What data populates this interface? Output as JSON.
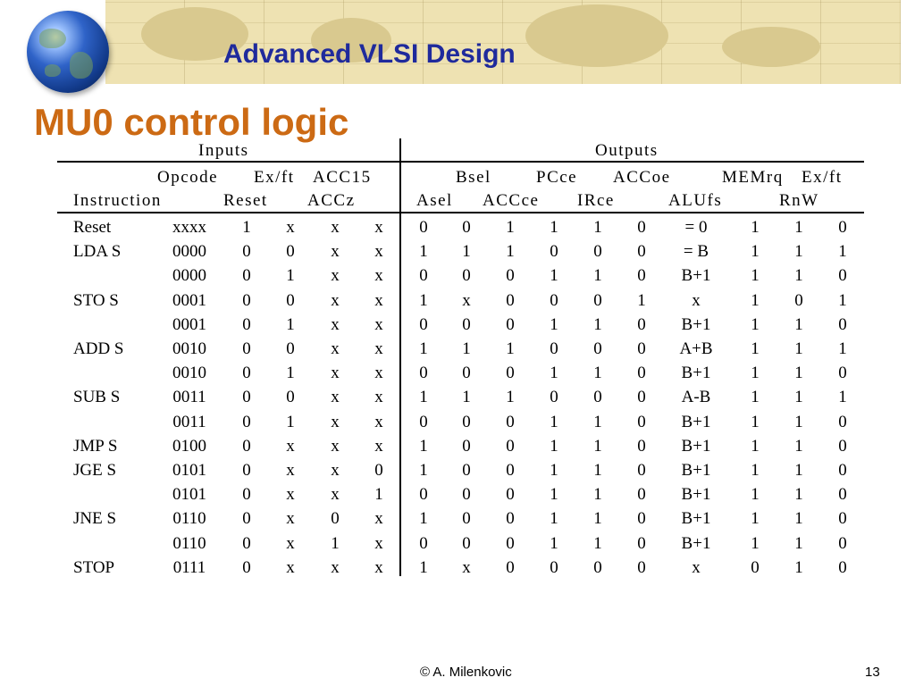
{
  "header": {
    "course_title": "Advanced VLSI Design",
    "slide_title": "MU0 control logic"
  },
  "table": {
    "group_labels": {
      "inputs": "Inputs",
      "outputs": "Outputs"
    },
    "header_row1": [
      "Opcode",
      "Ex/ft",
      "ACC15",
      "Bsel",
      "PCce",
      "ACCoe",
      "MEMrq",
      "Ex/ft"
    ],
    "header_row2": [
      "Instruction",
      "Reset",
      "ACCz",
      "Asel",
      "ACCce",
      "IRce",
      "ALUfs",
      "RnW"
    ],
    "rows": [
      [
        "Reset",
        "xxxx",
        "1",
        "x",
        "x",
        "x",
        "0",
        "0",
        "1",
        "1",
        "1",
        "0",
        "= 0",
        "1",
        "1",
        "0"
      ],
      [
        "LDA S",
        "0000",
        "0",
        "0",
        "x",
        "x",
        "1",
        "1",
        "1",
        "0",
        "0",
        "0",
        "= B",
        "1",
        "1",
        "1"
      ],
      [
        "",
        "0000",
        "0",
        "1",
        "x",
        "x",
        "0",
        "0",
        "0",
        "1",
        "1",
        "0",
        "B+1",
        "1",
        "1",
        "0"
      ],
      [
        "STO S",
        "0001",
        "0",
        "0",
        "x",
        "x",
        "1",
        "x",
        "0",
        "0",
        "0",
        "1",
        "x",
        "1",
        "0",
        "1"
      ],
      [
        "",
        "0001",
        "0",
        "1",
        "x",
        "x",
        "0",
        "0",
        "0",
        "1",
        "1",
        "0",
        "B+1",
        "1",
        "1",
        "0"
      ],
      [
        "ADD S",
        "0010",
        "0",
        "0",
        "x",
        "x",
        "1",
        "1",
        "1",
        "0",
        "0",
        "0",
        "A+B",
        "1",
        "1",
        "1"
      ],
      [
        "",
        "0010",
        "0",
        "1",
        "x",
        "x",
        "0",
        "0",
        "0",
        "1",
        "1",
        "0",
        "B+1",
        "1",
        "1",
        "0"
      ],
      [
        "SUB S",
        "0011",
        "0",
        "0",
        "x",
        "x",
        "1",
        "1",
        "1",
        "0",
        "0",
        "0",
        "A-B",
        "1",
        "1",
        "1"
      ],
      [
        "",
        "0011",
        "0",
        "1",
        "x",
        "x",
        "0",
        "0",
        "0",
        "1",
        "1",
        "0",
        "B+1",
        "1",
        "1",
        "0"
      ],
      [
        "JMP S",
        "0100",
        "0",
        "x",
        "x",
        "x",
        "1",
        "0",
        "0",
        "1",
        "1",
        "0",
        "B+1",
        "1",
        "1",
        "0"
      ],
      [
        "JGE S",
        "0101",
        "0",
        "x",
        "x",
        "0",
        "1",
        "0",
        "0",
        "1",
        "1",
        "0",
        "B+1",
        "1",
        "1",
        "0"
      ],
      [
        "",
        "0101",
        "0",
        "x",
        "x",
        "1",
        "0",
        "0",
        "0",
        "1",
        "1",
        "0",
        "B+1",
        "1",
        "1",
        "0"
      ],
      [
        "JNE S",
        "0110",
        "0",
        "x",
        "0",
        "x",
        "1",
        "0",
        "0",
        "1",
        "1",
        "0",
        "B+1",
        "1",
        "1",
        "0"
      ],
      [
        "",
        "0110",
        "0",
        "x",
        "1",
        "x",
        "0",
        "0",
        "0",
        "1",
        "1",
        "0",
        "B+1",
        "1",
        "1",
        "0"
      ],
      [
        "STOP",
        "0111",
        "0",
        "x",
        "x",
        "x",
        "1",
        "x",
        "0",
        "0",
        "0",
        "0",
        "x",
        "0",
        "1",
        "0"
      ]
    ]
  },
  "footer": {
    "author": "© A. Milenkovic",
    "page_number": "13"
  },
  "icons": {
    "logo": "globe-icon"
  },
  "colors": {
    "course_title": "#1f2a9c",
    "slide_title": "#cc6a14",
    "banner": "#eee2b2"
  }
}
